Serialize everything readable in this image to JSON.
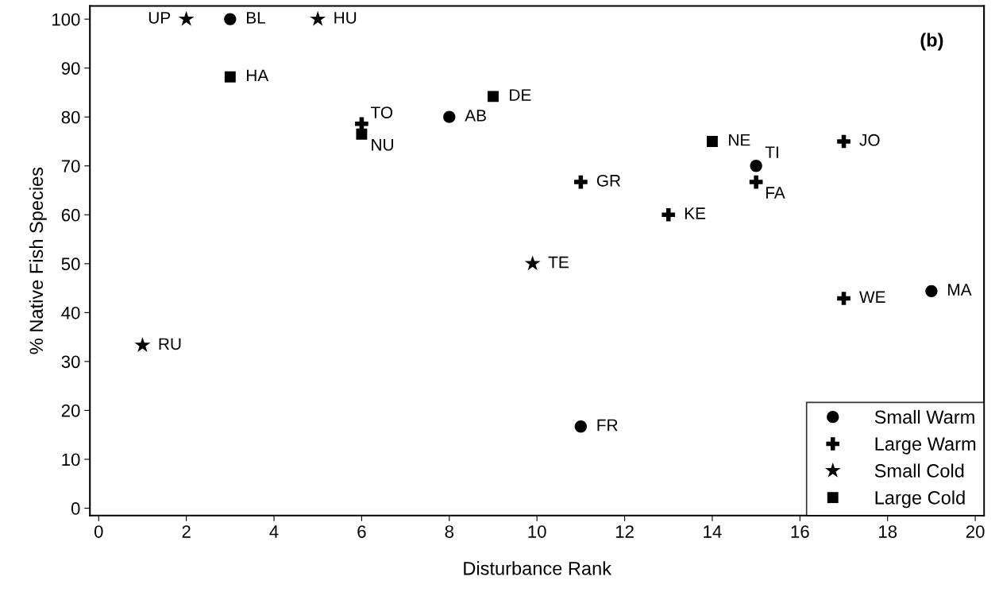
{
  "chart_data": {
    "type": "scatter",
    "xlabel": "Disturbance Rank",
    "ylabel": "% Native Fish Species",
    "xlim": [
      -0.2,
      20.2
    ],
    "xticks": [
      0,
      2,
      4,
      6,
      8,
      10,
      12,
      14,
      16,
      18,
      20
    ],
    "ylim": [
      -1.5,
      102.7
    ],
    "yticks": [
      0,
      10,
      20,
      30,
      40,
      50,
      60,
      70,
      80,
      90,
      100
    ],
    "grid": false,
    "legend": "bottom right",
    "series": [
      {
        "name": "Small Warm",
        "color": "#000000",
        "marker": "circle",
        "x": [
          3,
          8,
          15,
          11,
          19
        ],
        "values": [
          100,
          80,
          70,
          16.7,
          44.4
        ]
      },
      {
        "name": "Large Warm",
        "color": "#000000",
        "marker": "cross",
        "x": [
          6,
          11,
          13,
          15,
          17,
          17
        ],
        "values": [
          78.6,
          66.7,
          60,
          66.7,
          75,
          42.9
        ]
      },
      {
        "name": "Small Cold",
        "color": "#000000",
        "marker": "star",
        "x": [
          2,
          5,
          9.9,
          1
        ],
        "values": [
          100,
          100,
          50,
          33.3
        ]
      },
      {
        "name": "Large Cold",
        "color": "#000000",
        "marker": "square",
        "x": [
          3,
          9,
          6,
          14
        ],
        "values": [
          88.2,
          84.2,
          76.5,
          75
        ]
      }
    ],
    "annotations": [
      {
        "text": "BL",
        "x": 3,
        "y": 100
      },
      {
        "text": "AB",
        "x": 8,
        "y": 80
      },
      {
        "text": "TI",
        "x": 15,
        "y": 70
      },
      {
        "text": "FR",
        "x": 11,
        "y": 16.7
      },
      {
        "text": "MA",
        "x": 19,
        "y": 44.4
      },
      {
        "text": "TO",
        "x": 6,
        "y": 78.6
      },
      {
        "text": "GR",
        "x": 11,
        "y": 66.7
      },
      {
        "text": "KE",
        "x": 13,
        "y": 60
      },
      {
        "text": "FA",
        "x": 15,
        "y": 66.7
      },
      {
        "text": "JO",
        "x": 17,
        "y": 75
      },
      {
        "text": "WE",
        "x": 17,
        "y": 42.9
      },
      {
        "text": "UP",
        "x": 2,
        "y": 100
      },
      {
        "text": "HU",
        "x": 5,
        "y": 100
      },
      {
        "text": "TE",
        "x": 9.9,
        "y": 50
      },
      {
        "text": "RU",
        "x": 1,
        "y": 33.3
      },
      {
        "text": "HA",
        "x": 3,
        "y": 88.2
      },
      {
        "text": "DE",
        "x": 9,
        "y": 84.2
      },
      {
        "text": "NU",
        "x": 6,
        "y": 76.5
      },
      {
        "text": "NE",
        "x": 14,
        "y": 75
      },
      "(b)"
    ]
  }
}
